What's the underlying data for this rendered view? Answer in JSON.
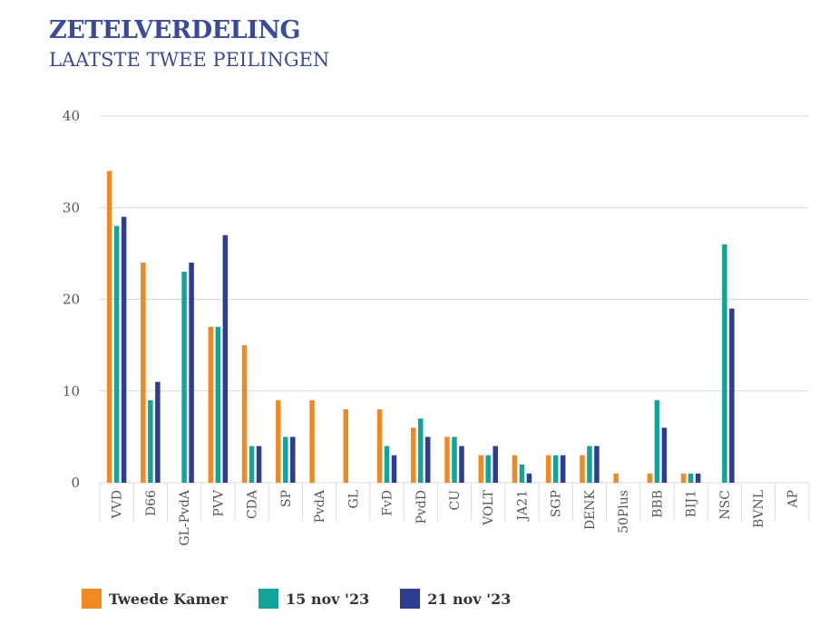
{
  "header": {
    "title": "ZETELVERDELING",
    "subtitle": "LAATSTE TWEE PEILINGEN"
  },
  "colors": {
    "series": [
      "#ef8a22",
      "#12a39a",
      "#2e3d8f"
    ],
    "grid": "#d9d9d9",
    "tick": "#555555",
    "title": "#3a4a9c"
  },
  "chart_data": {
    "type": "bar",
    "title": "ZETELVERDELING",
    "subtitle": "LAATSTE TWEE PEILINGEN",
    "ylim": [
      0,
      40
    ],
    "yticks": [
      0,
      10,
      20,
      30,
      40
    ],
    "grid": true,
    "legend": "bottom",
    "categories": [
      "VVD",
      "D66",
      "GL-PvdA",
      "PVV",
      "CDA",
      "SP",
      "PvdA",
      "GL",
      "FvD",
      "PvdD",
      "CU",
      "VOLT",
      "JA21",
      "SGP",
      "DENK",
      "50Plus",
      "BBB",
      "BIJ1",
      "NSC",
      "BVNL",
      "AP"
    ],
    "series": [
      {
        "name": "Tweede Kamer",
        "values": [
          34,
          24,
          0,
          17,
          15,
          9,
          9,
          8,
          8,
          6,
          5,
          3,
          3,
          3,
          3,
          1,
          1,
          1,
          0,
          0,
          0
        ]
      },
      {
        "name": "15 nov '23",
        "values": [
          28,
          9,
          23,
          17,
          4,
          5,
          0,
          0,
          4,
          7,
          5,
          3,
          2,
          3,
          4,
          0,
          9,
          1,
          26,
          0,
          0
        ]
      },
      {
        "name": "21 nov '23",
        "values": [
          29,
          11,
          24,
          27,
          4,
          5,
          0,
          0,
          3,
          5,
          4,
          4,
          1,
          3,
          4,
          0,
          6,
          1,
          19,
          0,
          0
        ]
      }
    ]
  }
}
